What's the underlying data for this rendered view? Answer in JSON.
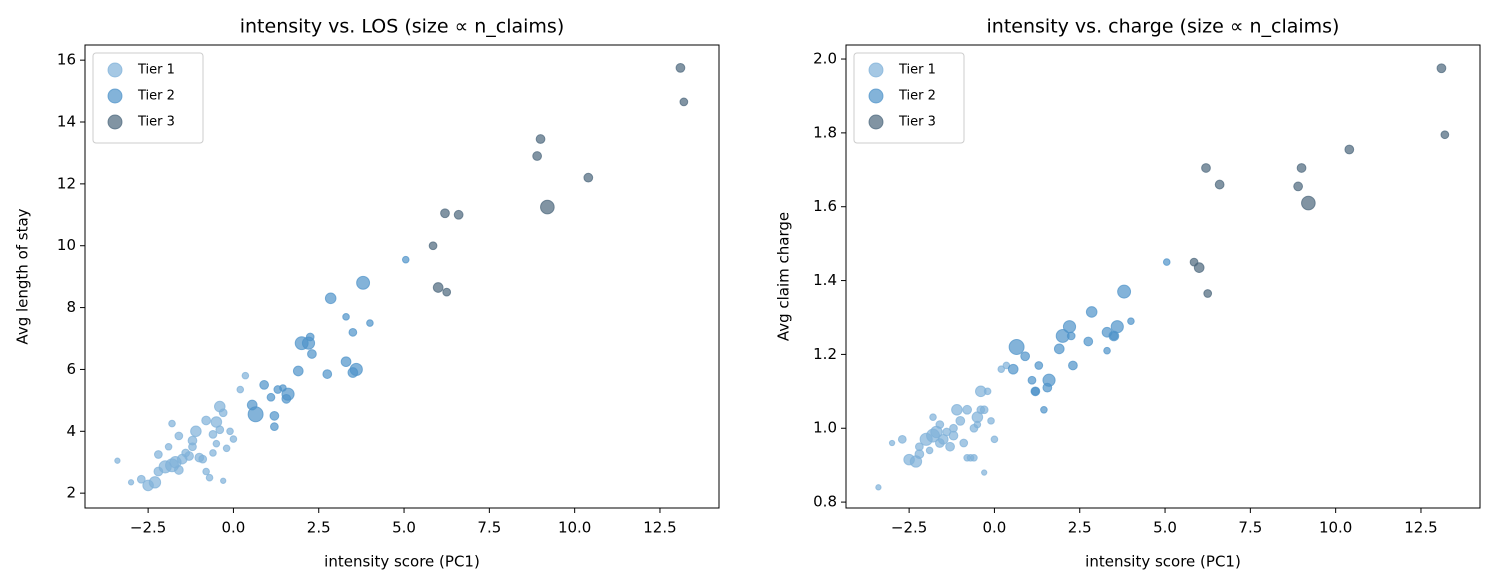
{
  "chart_data": [
    {
      "type": "scatter",
      "title": "intensity vs. LOS (size ∝ n_claims)",
      "xlabel": "intensity score (PC1)",
      "ylabel": "Avg length of stay",
      "xlim": [
        -4.35,
        14.23
      ],
      "ylim": [
        1.52,
        16.49
      ],
      "xticks": [
        {
          "value": -2.5,
          "label": "−2.5"
        },
        {
          "value": 0,
          "label": "0.0"
        },
        2.5,
        {
          "value": 5,
          "label": "5.0"
        },
        7.5,
        {
          "value": 10,
          "label": "10.0"
        },
        12.5
      ],
      "yticks": [
        2,
        4,
        6,
        8,
        10,
        12,
        14,
        16
      ],
      "legend": "upper left",
      "alpha": 0.7,
      "series": [
        {
          "name": "Tier 1",
          "color": "#7fb1d8",
          "x": [
            -3.4,
            -3.0,
            -2.5,
            -2.3,
            -2.2,
            -2.0,
            -1.8,
            -1.7,
            -1.6,
            -1.5,
            -1.4,
            -1.3,
            -1.2,
            -1.0,
            -0.9,
            -0.8,
            -0.7,
            -0.6,
            -0.6,
            -0.5,
            -0.4,
            -0.3,
            -0.2,
            -0.1,
            0.0,
            0.2,
            0.35,
            -1.8,
            -1.6,
            -2.2,
            -1.9,
            -0.8,
            -1.1,
            -0.5,
            -0.3,
            -2.7,
            -1.2,
            -0.4
          ],
          "values": [
            3.05,
            2.35,
            2.25,
            2.35,
            2.7,
            2.85,
            2.9,
            3.0,
            2.75,
            3.1,
            3.3,
            3.2,
            3.5,
            3.15,
            3.1,
            2.7,
            2.5,
            3.3,
            3.9,
            4.3,
            4.05,
            4.6,
            3.45,
            4.0,
            3.75,
            5.35,
            5.8,
            4.25,
            3.85,
            3.25,
            3.5,
            4.35,
            4.0,
            3.6,
            2.4,
            2.45,
            3.7,
            4.8
          ],
          "sizes": [
            3,
            3,
            8,
            9,
            6,
            10,
            11,
            9,
            6,
            7,
            5,
            6,
            5,
            6,
            5,
            4,
            4,
            4,
            5,
            8,
            5,
            5,
            4,
            4,
            4,
            4,
            4,
            4,
            5,
            5,
            4,
            6,
            8,
            4,
            3,
            5,
            6,
            8
          ]
        },
        {
          "name": "Tier 2",
          "color": "#4f93c9",
          "x": [
            5.05,
            3.8,
            2.85,
            3.3,
            4.0,
            3.5,
            2.25,
            2.2,
            2.0,
            2.3,
            3.3,
            3.6,
            3.5,
            1.9,
            2.75,
            0.9,
            1.6,
            1.3,
            1.55,
            0.55,
            0.65,
            1.1,
            1.2,
            1.2,
            1.45
          ],
          "values": [
            9.55,
            8.8,
            8.3,
            7.7,
            7.5,
            7.2,
            7.05,
            6.85,
            6.85,
            6.5,
            6.25,
            6.0,
            5.9,
            5.95,
            5.85,
            5.5,
            5.2,
            5.35,
            5.05,
            4.85,
            4.55,
            5.1,
            4.5,
            4.15,
            5.4
          ],
          "sizes": [
            4,
            11,
            8,
            4,
            4,
            5,
            5,
            10,
            11,
            6,
            7,
            10,
            7,
            7,
            6,
            6,
            10,
            5,
            6,
            7,
            14,
            5,
            6,
            5,
            4
          ]
        },
        {
          "name": "Tier 3",
          "color": "#4b667c",
          "x": [
            13.1,
            13.2,
            9.0,
            8.9,
            10.4,
            9.2,
            6.2,
            6.6,
            5.85,
            6.0,
            6.25
          ],
          "values": [
            15.75,
            14.65,
            13.45,
            12.9,
            12.2,
            11.25,
            11.05,
            11.0,
            10.0,
            8.65,
            8.5
          ],
          "sizes": [
            6,
            5,
            6,
            6,
            6,
            12,
            6,
            6,
            5,
            7,
            5
          ]
        }
      ]
    },
    {
      "type": "scatter",
      "title": "intensity vs. charge (size ∝ n_claims)",
      "xlabel": "intensity score (PC1)",
      "ylabel": "Avg claim charge",
      "xlim": [
        -4.35,
        14.23
      ],
      "ylim": [
        0.784,
        2.038
      ],
      "xticks": [
        {
          "value": -2.5,
          "label": "−2.5"
        },
        {
          "value": 0,
          "label": "0.0"
        },
        2.5,
        {
          "value": 5,
          "label": "5.0"
        },
        7.5,
        {
          "value": 10,
          "label": "10.0"
        },
        12.5
      ],
      "yticks": [
        0.8,
        {
          "value": 1,
          "label": "1.0"
        },
        1.2,
        1.4,
        1.6,
        1.8,
        {
          "value": 2,
          "label": "2.0"
        }
      ],
      "legend": "upper left",
      "alpha": 0.7,
      "series": [
        {
          "name": "Tier 1",
          "color": "#7fb1d8",
          "x": [
            -3.4,
            -3.0,
            -2.5,
            -2.3,
            -2.2,
            -2.0,
            -1.8,
            -1.7,
            -1.6,
            -1.5,
            -1.4,
            -1.3,
            -1.2,
            -1.0,
            -0.9,
            -0.8,
            -0.7,
            -0.6,
            -0.6,
            -0.5,
            -0.4,
            -0.3,
            -0.2,
            -0.1,
            0.0,
            0.2,
            0.35,
            -1.8,
            -1.6,
            -2.2,
            -1.9,
            -0.8,
            -1.1,
            -0.5,
            -0.3,
            -2.7,
            -1.2,
            -0.4
          ],
          "values": [
            0.84,
            0.96,
            0.915,
            0.91,
            0.93,
            0.97,
            0.98,
            0.99,
            0.96,
            0.97,
            0.99,
            0.95,
            1.0,
            1.02,
            0.96,
            0.92,
            0.92,
            0.92,
            1.0,
            1.03,
            1.05,
            1.05,
            1.1,
            1.02,
            0.97,
            1.16,
            1.17,
            1.03,
            1.01,
            0.95,
            0.94,
            1.05,
            1.05,
            1.01,
            0.88,
            0.97,
            0.98,
            1.1
          ],
          "sizes": [
            3,
            3,
            8,
            9,
            6,
            10,
            11,
            9,
            6,
            7,
            5,
            6,
            5,
            6,
            5,
            4,
            4,
            4,
            5,
            8,
            5,
            5,
            4,
            4,
            4,
            4,
            4,
            4,
            5,
            5,
            4,
            6,
            8,
            4,
            3,
            5,
            6,
            8
          ]
        },
        {
          "name": "Tier 2",
          "color": "#4f93c9",
          "x": [
            5.05,
            3.8,
            2.85,
            3.3,
            4.0,
            3.5,
            2.25,
            2.2,
            2.0,
            2.3,
            3.3,
            3.6,
            3.5,
            1.9,
            2.75,
            0.9,
            1.6,
            1.3,
            1.55,
            0.55,
            0.65,
            1.1,
            1.2,
            1.2,
            1.45
          ],
          "values": [
            1.45,
            1.37,
            1.315,
            1.21,
            1.29,
            1.25,
            1.25,
            1.275,
            1.25,
            1.17,
            1.26,
            1.275,
            1.25,
            1.215,
            1.235,
            1.195,
            1.13,
            1.17,
            1.11,
            1.16,
            1.22,
            1.13,
            1.1,
            1.1,
            1.05
          ],
          "sizes": [
            4,
            11,
            8,
            4,
            4,
            5,
            5,
            10,
            11,
            6,
            7,
            10,
            7,
            7,
            6,
            6,
            10,
            5,
            6,
            7,
            14,
            5,
            6,
            5,
            4
          ]
        },
        {
          "name": "Tier 3",
          "color": "#4b667c",
          "x": [
            13.1,
            13.2,
            9.0,
            8.9,
            10.4,
            9.2,
            6.2,
            6.6,
            5.85,
            6.0,
            6.25
          ],
          "values": [
            1.975,
            1.795,
            1.705,
            1.655,
            1.755,
            1.61,
            1.705,
            1.66,
            1.45,
            1.435,
            1.365
          ],
          "sizes": [
            6,
            5,
            6,
            6,
            6,
            12,
            6,
            6,
            5,
            7,
            5
          ]
        }
      ]
    }
  ]
}
